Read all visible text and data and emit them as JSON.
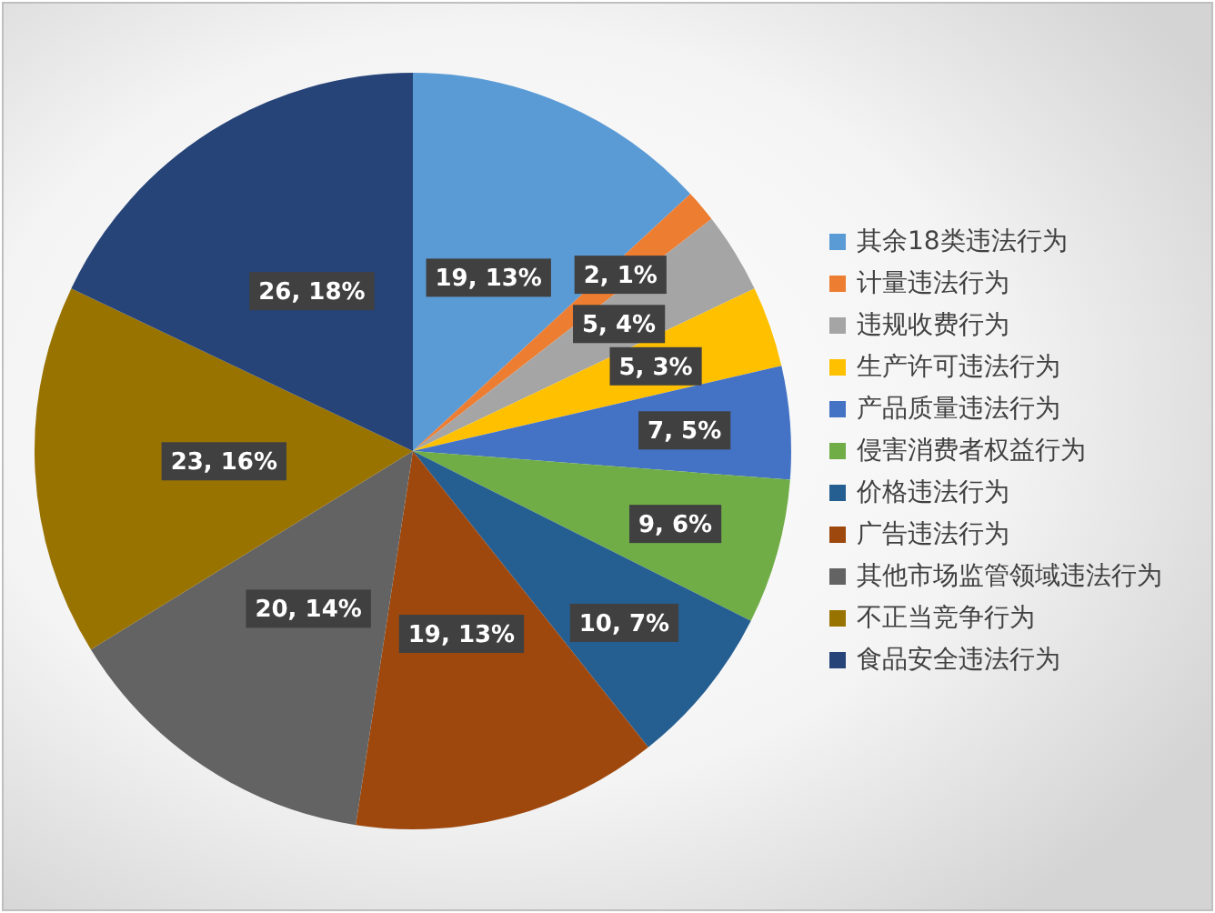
{
  "chart_data": {
    "type": "pie",
    "categories": [
      "其余18类违法行为",
      "计量违法行为",
      "违规收费行为",
      "生产许可违法行为",
      "产品质量违法行为",
      "侵害消费者权益行为",
      "价格违法行为",
      "广告违法行为",
      "其他市场监管领域违法行为",
      "不正当竞争行为",
      "食品安全违法行为"
    ],
    "values": [
      19,
      2,
      5,
      5,
      7,
      9,
      10,
      19,
      20,
      23,
      26
    ],
    "colors": [
      "#5b9bd5",
      "#ed7d31",
      "#a5a5a5",
      "#ffc000",
      "#4472c4",
      "#70ad47",
      "#255e91",
      "#9e480e",
      "#636363",
      "#997300",
      "#264478"
    ],
    "value_labels": [
      "19, 13%",
      "2, 1%",
      "5, 4%",
      "5, 3%",
      "7, 5%",
      "9, 6%",
      "10, 7%",
      "19, 13%",
      "20, 14%",
      "23, 16%",
      "26, 18%"
    ],
    "legend": "right"
  }
}
